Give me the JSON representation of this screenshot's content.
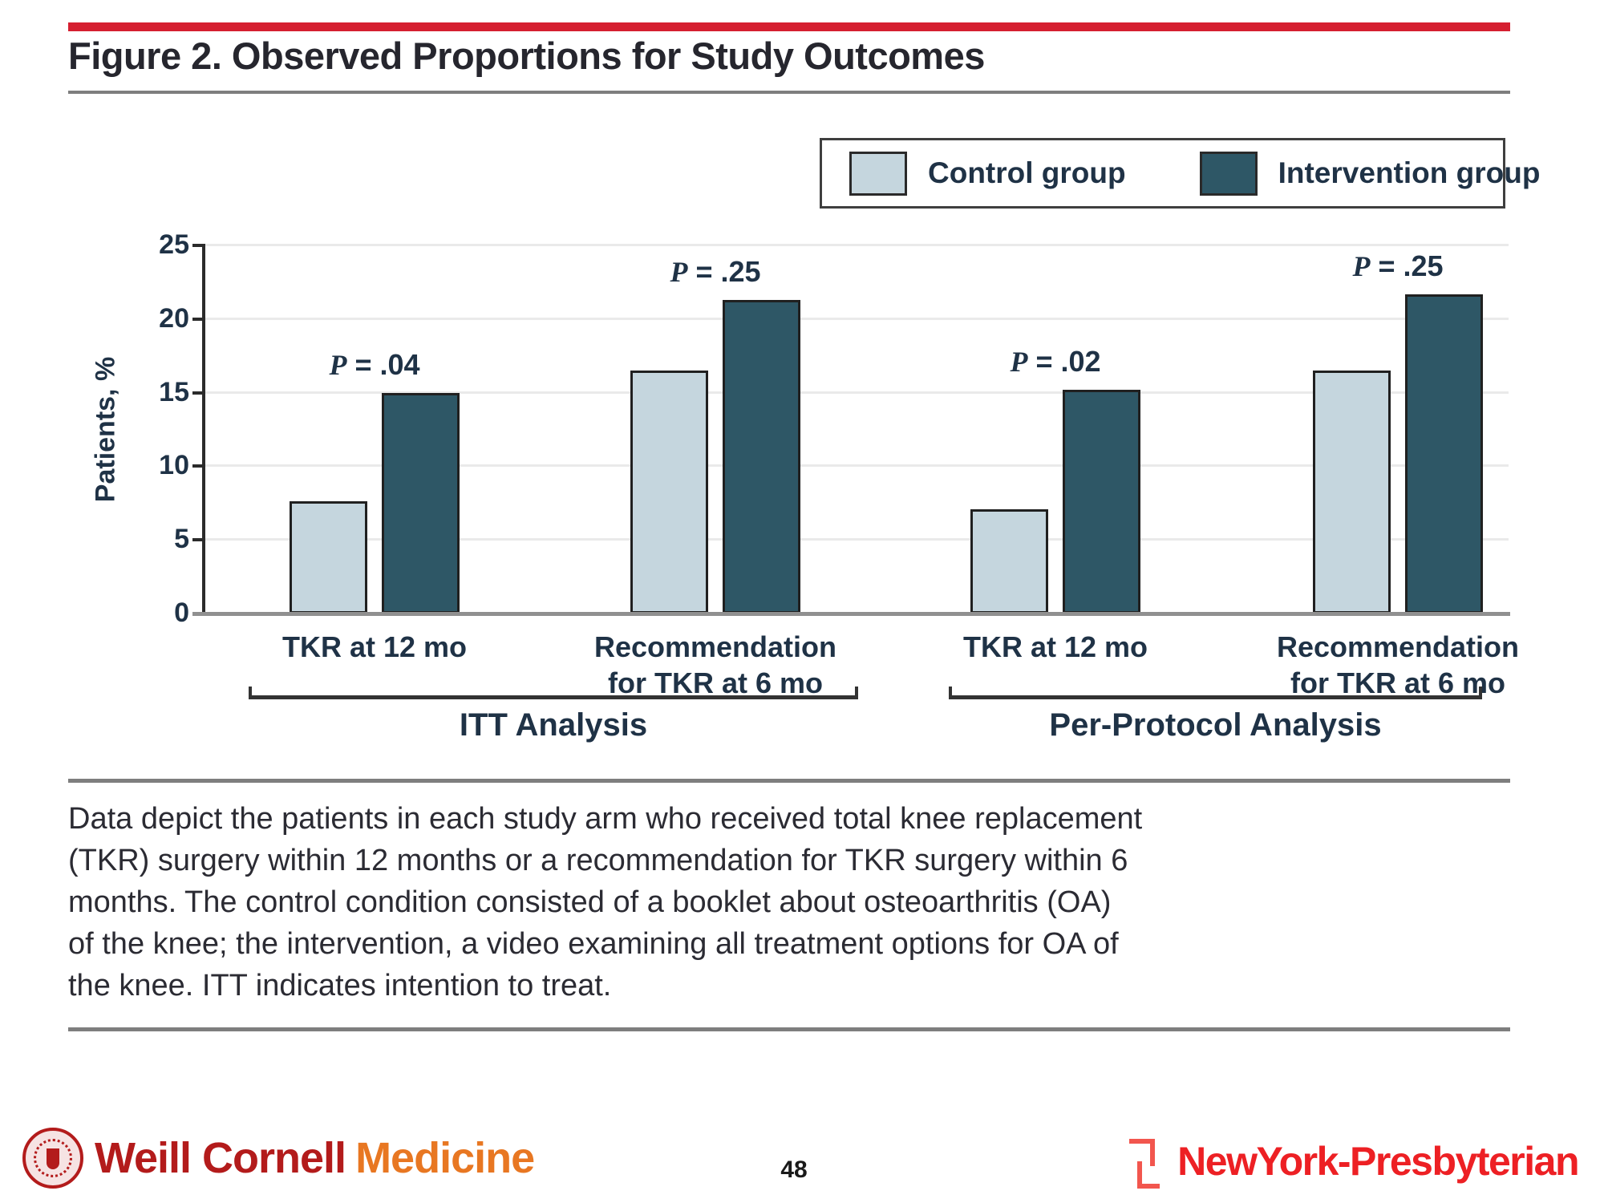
{
  "header": {
    "title": "Figure 2. Observed Proportions for Study Outcomes"
  },
  "chart_data": {
    "type": "bar",
    "title": "Figure 2. Observed Proportions for Study Outcomes",
    "xlabel": "",
    "ylabel": "Patients, %",
    "ylim": [
      0,
      25
    ],
    "yticks": [
      0,
      5,
      10,
      15,
      20,
      25
    ],
    "grid": "horizontal",
    "legend": {
      "position": "top-right",
      "entries": [
        "Control group",
        "Intervention group"
      ]
    },
    "categories": [
      "TKR at 12 mo",
      "Recommendation for TKR at 6 mo",
      "TKR at 12 mo",
      "Recommendation for TKR at 6 mo"
    ],
    "series": [
      {
        "name": "Control group",
        "values": [
          7.6,
          16.5,
          7.1,
          16.5
        ]
      },
      {
        "name": "Intervention group",
        "values": [
          15.0,
          21.3,
          15.2,
          21.7
        ]
      }
    ],
    "p_labels": [
      "P = .04",
      "P = .25",
      "P = .02",
      "P = .25"
    ],
    "analysis_groups": [
      "ITT Analysis",
      "Per-Protocol Analysis"
    ]
  },
  "caption": {
    "lines": [
      "Data depict the patients in each study arm who received total knee replacement",
      "(TKR) surgery within 12 months or a recommendation for TKR surgery within 6",
      "months. The control condition consisted of a booklet about osteoarthritis (OA)",
      "of the knee; the intervention, a video examining all treatment options for OA of",
      "the knee. ITT indicates intention to treat."
    ]
  },
  "footer": {
    "left_logo": {
      "name": "Weill Cornell Medicine",
      "part1": "Weill Cornell",
      "part2": "Medicine"
    },
    "page_number": "48",
    "right_logo": {
      "name": "NewYork-Presbyterian",
      "text": "NewYork-Presbyterian"
    }
  },
  "colors": {
    "control": "#c5d6de",
    "intervention": "#2e5766",
    "accent_red_bar": "#d51f30",
    "chart_text": "#1f3246",
    "wcm_red": "#b31b1b",
    "wcm_orange": "#e87722",
    "nyp_red": "#ed2024"
  }
}
